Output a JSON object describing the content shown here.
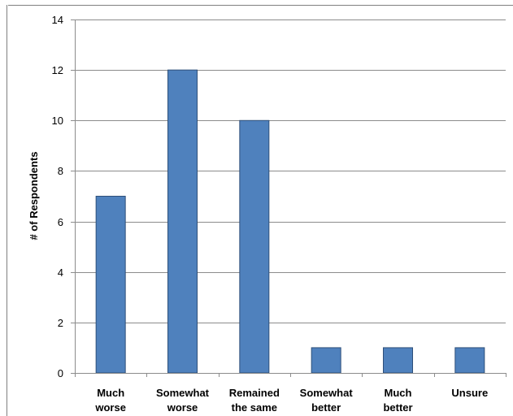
{
  "chart_data": {
    "type": "bar",
    "categories": [
      [
        "Much",
        "worse"
      ],
      [
        "Somewhat",
        "worse"
      ],
      [
        "Remained",
        "the same"
      ],
      [
        "Somewhat",
        "better"
      ],
      [
        "Much",
        "better"
      ],
      [
        "Unsure"
      ]
    ],
    "values": [
      7,
      12,
      10,
      1,
      1,
      1
    ],
    "title": "",
    "xlabel": "",
    "ylabel": "# of Respondents",
    "ylim": [
      0,
      14
    ],
    "yticks": [
      0,
      2,
      4,
      6,
      8,
      10,
      12,
      14
    ],
    "grid": true,
    "legend": "none",
    "bar_color": "#4f81bd"
  }
}
